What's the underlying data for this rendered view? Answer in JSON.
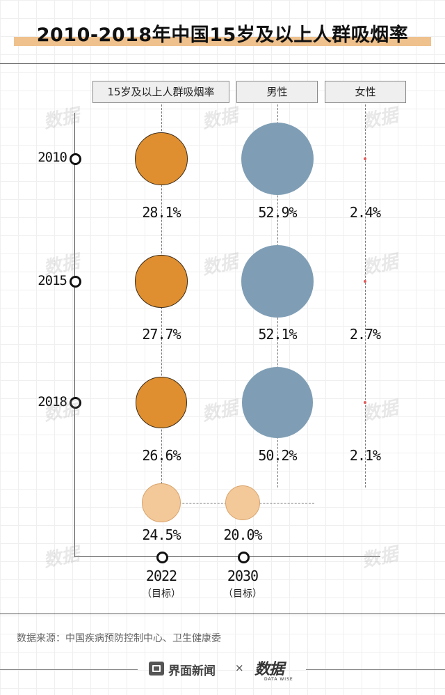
{
  "title": "2010-2018年中国15岁及以上人群吸烟率",
  "chart_data": {
    "type": "bubble",
    "title": "2010-2018年中国15岁及以上人群吸烟率",
    "columns": [
      "15岁及以上人群吸烟率",
      "男性",
      "女性"
    ],
    "years": [
      "2010",
      "2015",
      "2018"
    ],
    "series": [
      {
        "name": "15岁及以上人群吸烟率",
        "values": [
          28.1,
          27.7,
          26.6
        ],
        "labels": [
          "28.1%",
          "27.7%",
          "26.6%"
        ],
        "color": "#df8f2f"
      },
      {
        "name": "男性",
        "values": [
          52.9,
          52.1,
          50.2
        ],
        "labels": [
          "52.9%",
          "52.1%",
          "50.2%"
        ],
        "color": "#7f9eb5"
      },
      {
        "name": "女性",
        "values": [
          2.4,
          2.7,
          2.1
        ],
        "labels": [
          "2.4%",
          "2.7%",
          "2.1%"
        ],
        "color": "#e05a5a"
      }
    ],
    "targets": [
      {
        "year": "2022",
        "note": "（目标）",
        "value": 24.5,
        "label": "24.5%"
      },
      {
        "year": "2030",
        "note": "（目标）",
        "value": 20.0,
        "label": "20.0%"
      }
    ],
    "target_color": "#f3c99a"
  },
  "source": "数据来源：中国疾病预防控制中心、卫生健康委",
  "footer": {
    "brand": "界面新闻",
    "separator": "×",
    "partner": "数据",
    "partner_sub": "DATA WISE"
  },
  "watermark": "数据"
}
